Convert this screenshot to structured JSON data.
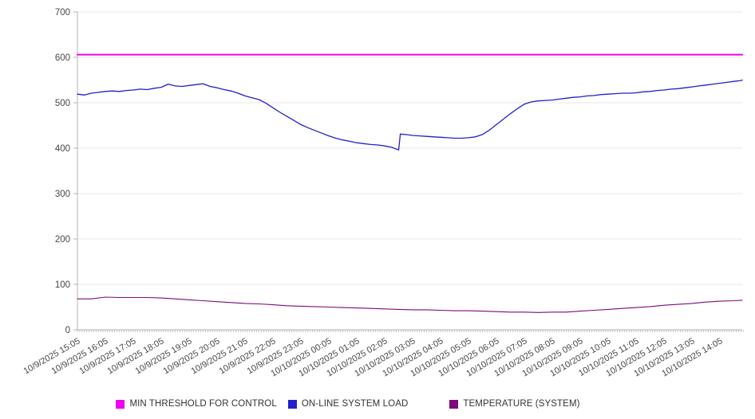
{
  "chart_data": {
    "type": "line",
    "title": "",
    "grid": true,
    "legend_position": "bottom",
    "background": "#ffffff",
    "axis_color": "#b3b3b3",
    "grid_color": "#e7e7e7",
    "tick_label_color": "#474747",
    "y_axis": {
      "min": 0,
      "max": 700,
      "ticks": [
        0,
        100,
        200,
        300,
        400,
        500,
        600,
        700
      ]
    },
    "x_axis": {
      "unit": "hours from start",
      "label_hours": [
        0,
        1,
        2,
        3,
        4,
        5,
        6,
        7,
        8,
        9,
        10,
        11,
        12,
        13,
        14,
        15,
        16,
        17,
        18,
        19,
        20,
        21,
        22,
        23
      ],
      "labels": [
        "10/9/2025 15:05",
        "10/9/2025 16:05",
        "10/9/2025 17:05",
        "10/9/2025 18:05",
        "10/9/2025 19:05",
        "10/9/2025 20:05",
        "10/9/2025 21:05",
        "10/9/2025 22:05",
        "10/9/2025 23:05",
        "10/10/2025 00:05",
        "10/10/2025 01:05",
        "10/10/2025 02:05",
        "10/10/2025 03:05",
        "10/10/2025 04:05",
        "10/10/2025 05:05",
        "10/10/2025 06:05",
        "10/10/2025 07:05",
        "10/10/2025 08:05",
        "10/10/2025 09:05",
        "10/10/2025 10:05",
        "10/10/2025 11:05",
        "10/10/2025 12:05",
        "10/10/2025 13:05",
        "10/10/2025 14:05"
      ]
    },
    "series": [
      {
        "name": "MIN THRESHOLD FOR CONTROL",
        "color": "#f000f0",
        "x": [
          0,
          23.8
        ],
        "values": [
          606,
          606
        ]
      },
      {
        "name": "ON-LINE SYSTEM LOAD",
        "color": "#2020cc",
        "x": [
          0,
          0.25,
          0.5,
          0.75,
          1,
          1.25,
          1.5,
          1.75,
          2,
          2.25,
          2.5,
          2.75,
          3,
          3.25,
          3.5,
          3.75,
          4,
          4.25,
          4.5,
          4.75,
          5,
          5.25,
          5.5,
          5.75,
          6,
          6.25,
          6.5,
          6.75,
          7,
          7.25,
          7.5,
          7.75,
          8,
          8.25,
          8.5,
          8.75,
          9,
          9.25,
          9.5,
          9.75,
          10,
          10.25,
          10.5,
          10.75,
          11,
          11.25,
          11.5,
          11.56,
          11.75,
          12,
          12.25,
          12.5,
          12.75,
          13,
          13.25,
          13.5,
          13.75,
          14,
          14.25,
          14.5,
          14.75,
          15,
          15.25,
          15.5,
          15.75,
          16,
          16.25,
          16.5,
          16.75,
          17,
          17.25,
          17.5,
          17.75,
          18,
          18.25,
          18.5,
          18.75,
          19,
          19.25,
          19.5,
          19.75,
          20,
          20.25,
          20.5,
          20.75,
          21,
          21.25,
          21.5,
          21.75,
          22,
          22.25,
          22.5,
          22.75,
          23,
          23.25,
          23.5,
          23.75,
          23.8
        ],
        "values": [
          519,
          517,
          521,
          523,
          525,
          526,
          525,
          527,
          528,
          530,
          529,
          532,
          534,
          541,
          537,
          536,
          538,
          540,
          542,
          536,
          533,
          529,
          526,
          521,
          515,
          511,
          507,
          499,
          489,
          479,
          470,
          461,
          452,
          445,
          439,
          433,
          427,
          422,
          418,
          415,
          412,
          410,
          408,
          407,
          405,
          402,
          396,
          431,
          430,
          428,
          427,
          426,
          425,
          424,
          423,
          422,
          422,
          423,
          425,
          430,
          440,
          452,
          464,
          476,
          487,
          497,
          502,
          504,
          505,
          506,
          508,
          510,
          512,
          513,
          515,
          516,
          518,
          519,
          520,
          521,
          521,
          522,
          524,
          525,
          527,
          528,
          530,
          531,
          533,
          535,
          537,
          539,
          541,
          543,
          545,
          547,
          549,
          550
        ]
      },
      {
        "name": "TEMPERATURE (SYSTEM)",
        "color": "#7d0a78",
        "x": [
          0,
          0.5,
          1,
          1.5,
          2,
          2.5,
          3,
          3.5,
          4,
          4.5,
          5,
          5.5,
          6,
          6.5,
          7,
          7.5,
          8,
          8.5,
          9,
          9.5,
          10,
          10.5,
          11,
          11.5,
          12,
          12.5,
          13,
          13.5,
          14,
          14.5,
          15,
          15.5,
          16,
          16.5,
          17,
          17.5,
          18,
          18.5,
          19,
          19.5,
          20,
          20.5,
          21,
          21.5,
          22,
          22.5,
          23,
          23.5,
          23.8
        ],
        "values": [
          68,
          68,
          72,
          71,
          71,
          71,
          70,
          68,
          66,
          64,
          62,
          60,
          58,
          57,
          55,
          53,
          52,
          51,
          50,
          49,
          48,
          47,
          46,
          45,
          44,
          44,
          43,
          42,
          42,
          41,
          40,
          39,
          39,
          38,
          39,
          39,
          41,
          43,
          45,
          47,
          49,
          51,
          54,
          56,
          58,
          61,
          63,
          64,
          65
        ]
      }
    ]
  }
}
